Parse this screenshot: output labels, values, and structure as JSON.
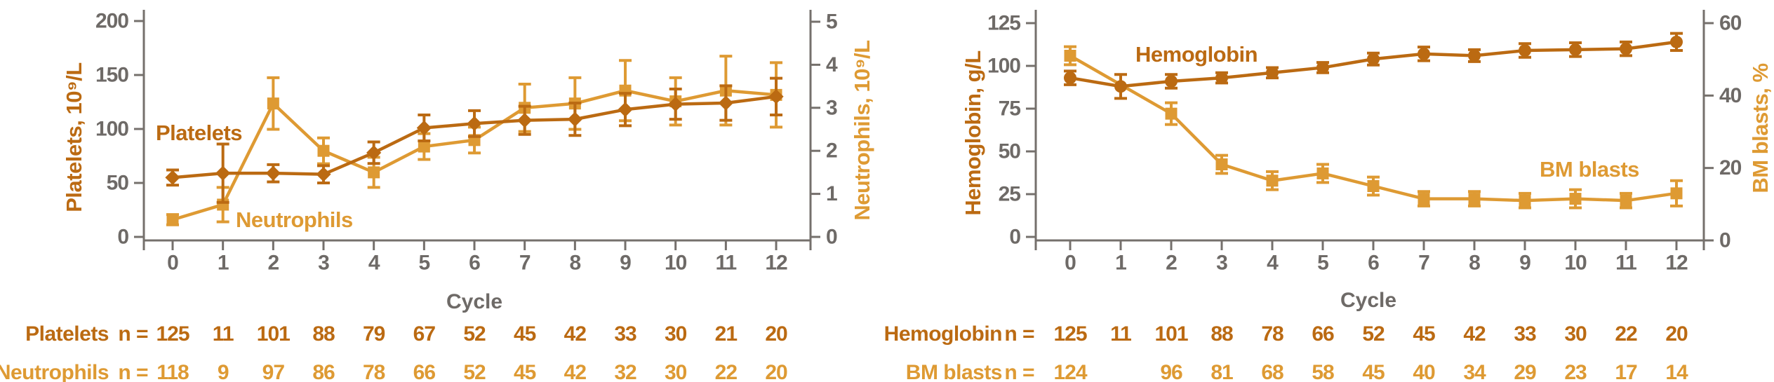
{
  "colors": {
    "dark_orange": "#BB6A12",
    "gold": "#DE9A33",
    "tick_gray": "#6E6A67",
    "axis_gray": "#75706C"
  },
  "chart_data": [
    {
      "type": "line",
      "xlabel": "Cycle",
      "x": [
        0,
        1,
        2,
        3,
        4,
        5,
        6,
        7,
        8,
        9,
        10,
        11,
        12
      ],
      "left_axis": {
        "label": "Platelets, 10⁹/L",
        "range": [
          0,
          200
        ],
        "ticks": [
          0,
          50,
          100,
          150,
          200
        ]
      },
      "right_axis": {
        "label": "Neutrophils, 10⁹/L",
        "range": [
          0,
          5
        ],
        "ticks": [
          0,
          1,
          2,
          3,
          4,
          5
        ]
      },
      "grid": false,
      "series": [
        {
          "name": "Platelets",
          "axis": "left",
          "color": "dark_orange",
          "marker": "diamond",
          "values": [
            55,
            59,
            59,
            58,
            78,
            101,
            105,
            108,
            109,
            118,
            123,
            124,
            130
          ],
          "errors": [
            7,
            27,
            8,
            8,
            10,
            12,
            12,
            13,
            15,
            15,
            14,
            16,
            17
          ]
        },
        {
          "name": "Neutrophils",
          "axis": "right",
          "color": "gold",
          "marker": "square",
          "values": [
            0.4,
            0.75,
            3.1,
            2.0,
            1.5,
            2.1,
            2.25,
            3.0,
            3.1,
            3.4,
            3.15,
            3.4,
            3.3
          ],
          "errors": [
            0.12,
            0.4,
            0.6,
            0.3,
            0.35,
            0.3,
            0.3,
            0.55,
            0.6,
            0.7,
            0.55,
            0.8,
            0.75
          ]
        }
      ],
      "n_table": [
        {
          "label": "Platelets",
          "eq": "n =",
          "values": [
            "125",
            "11",
            "101",
            "88",
            "79",
            "67",
            "52",
            "45",
            "42",
            "33",
            "30",
            "21",
            "20"
          ]
        },
        {
          "label": "Neutrophils",
          "eq": "n =",
          "values": [
            "118",
            "9",
            "97",
            "86",
            "78",
            "66",
            "52",
            "45",
            "42",
            "32",
            "30",
            "22",
            "20"
          ]
        }
      ]
    },
    {
      "type": "line",
      "xlabel": "Cycle",
      "x": [
        0,
        1,
        2,
        3,
        4,
        5,
        6,
        7,
        8,
        9,
        10,
        11,
        12
      ],
      "left_axis": {
        "label": "Hemoglobin, g/L",
        "range": [
          0,
          125
        ],
        "ticks": [
          0,
          25,
          50,
          75,
          100,
          125
        ]
      },
      "right_axis": {
        "label": "BM blasts, %",
        "range": [
          0,
          60
        ],
        "ticks": [
          0,
          20,
          40,
          60
        ]
      },
      "grid": false,
      "series": [
        {
          "name": "Hemoglobin",
          "axis": "left",
          "color": "dark_orange",
          "marker": "circle",
          "values": [
            93,
            88,
            91,
            93,
            96,
            99,
            104,
            107,
            106,
            109,
            109.5,
            110,
            114
          ],
          "errors": [
            4,
            7,
            4,
            3,
            3,
            3,
            3.5,
            4,
            3.5,
            4,
            4,
            4,
            5
          ]
        },
        {
          "name": "BM blasts",
          "axis": "right",
          "color": "gold",
          "marker": "square",
          "values": [
            51,
            null,
            35,
            21,
            16.5,
            18.5,
            15,
            11.5,
            11.5,
            11,
            11.5,
            11,
            13
          ],
          "errors": [
            2.5,
            null,
            3,
            2.5,
            2.5,
            2.5,
            2.5,
            2,
            2,
            2,
            2.5,
            2,
            3.5
          ]
        }
      ],
      "n_table": [
        {
          "label": "Hemoglobin",
          "eq": "n =",
          "values": [
            "125",
            "11",
            "101",
            "88",
            "78",
            "66",
            "52",
            "45",
            "42",
            "33",
            "30",
            "22",
            "20"
          ]
        },
        {
          "label": "BM blasts",
          "eq": "n =",
          "values": [
            "124",
            "",
            "96",
            "81",
            "68",
            "58",
            "45",
            "40",
            "34",
            "29",
            "23",
            "17",
            "14"
          ]
        }
      ]
    }
  ]
}
